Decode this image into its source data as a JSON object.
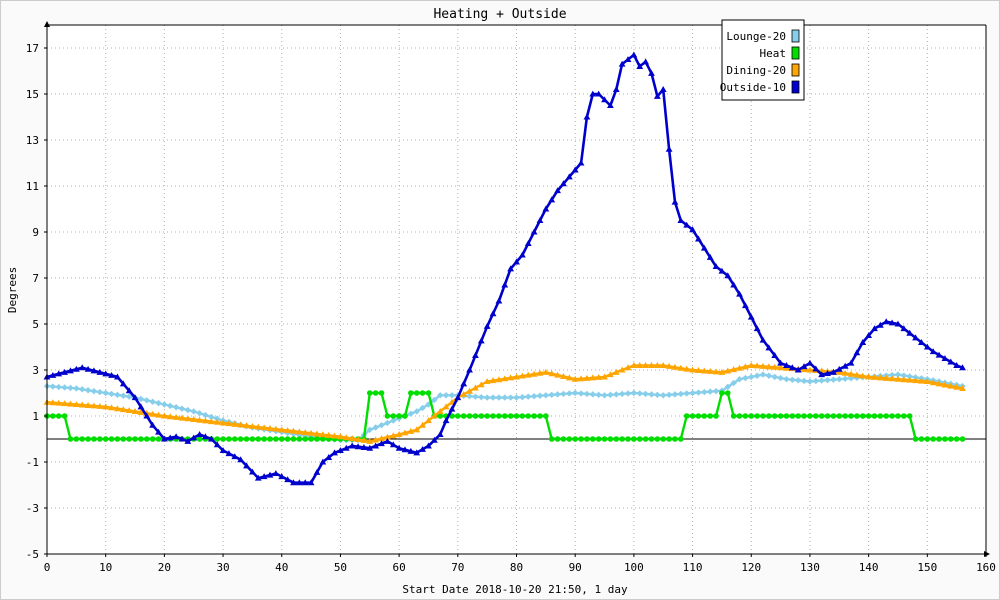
{
  "chart_data": {
    "type": "line",
    "title": "Heating + Outside",
    "xlabel": "Start Date 2018-10-20 21:50, 1 day",
    "ylabel": "Degrees",
    "xlim": [
      0,
      160
    ],
    "ylim": [
      -5,
      18
    ],
    "xticks": [
      0,
      10,
      20,
      30,
      40,
      50,
      60,
      70,
      80,
      90,
      100,
      110,
      120,
      130,
      140,
      150,
      160
    ],
    "yticks": [
      -5,
      -3,
      -1,
      1,
      3,
      5,
      7,
      9,
      11,
      13,
      15,
      17
    ],
    "grid": true,
    "legend_position": "top-right",
    "series": [
      {
        "name": "Lounge-20",
        "color": "#87CEEB",
        "marker": "diamond",
        "points": [
          [
            0,
            2.3
          ],
          [
            5,
            2.2
          ],
          [
            10,
            2.0
          ],
          [
            15,
            1.8
          ],
          [
            20,
            1.5
          ],
          [
            25,
            1.2
          ],
          [
            30,
            0.8
          ],
          [
            35,
            0.5
          ],
          [
            40,
            0.3
          ],
          [
            45,
            0.1
          ],
          [
            50,
            -0.05
          ],
          [
            53,
            -0.05
          ],
          [
            55,
            0.4
          ],
          [
            57,
            0.6
          ],
          [
            60,
            0.9
          ],
          [
            63,
            1.2
          ],
          [
            65,
            1.5
          ],
          [
            67,
            1.9
          ],
          [
            70,
            1.9
          ],
          [
            75,
            1.8
          ],
          [
            80,
            1.8
          ],
          [
            85,
            1.9
          ],
          [
            90,
            2.0
          ],
          [
            95,
            1.9
          ],
          [
            100,
            2.0
          ],
          [
            105,
            1.9
          ],
          [
            110,
            2.0
          ],
          [
            115,
            2.1
          ],
          [
            118,
            2.6
          ],
          [
            122,
            2.8
          ],
          [
            126,
            2.6
          ],
          [
            130,
            2.5
          ],
          [
            135,
            2.6
          ],
          [
            140,
            2.7
          ],
          [
            145,
            2.8
          ],
          [
            150,
            2.6
          ],
          [
            156,
            2.3
          ]
        ]
      },
      {
        "name": "Heat",
        "color": "#00DD00",
        "marker": "circle",
        "points": [
          [
            0,
            1
          ],
          [
            3,
            1
          ],
          [
            4,
            0
          ],
          [
            54,
            0
          ],
          [
            55,
            2
          ],
          [
            57,
            2
          ],
          [
            58,
            1
          ],
          [
            61,
            1
          ],
          [
            62,
            2
          ],
          [
            65,
            2
          ],
          [
            66,
            1
          ],
          [
            85,
            1
          ],
          [
            86,
            0
          ],
          [
            108,
            0
          ],
          [
            109,
            1
          ],
          [
            114,
            1
          ],
          [
            115,
            2
          ],
          [
            116,
            2
          ],
          [
            117,
            1
          ],
          [
            147,
            1
          ],
          [
            148,
            0
          ],
          [
            156,
            0
          ]
        ]
      },
      {
        "name": "Dining-20",
        "color": "#FFA500",
        "marker": "triangle",
        "points": [
          [
            0,
            1.6
          ],
          [
            10,
            1.4
          ],
          [
            20,
            1.0
          ],
          [
            30,
            0.7
          ],
          [
            40,
            0.4
          ],
          [
            50,
            0.1
          ],
          [
            55,
            -0.1
          ],
          [
            60,
            0.2
          ],
          [
            63,
            0.4
          ],
          [
            66,
            1.0
          ],
          [
            70,
            1.8
          ],
          [
            75,
            2.5
          ],
          [
            80,
            2.7
          ],
          [
            85,
            2.9
          ],
          [
            90,
            2.6
          ],
          [
            95,
            2.7
          ],
          [
            100,
            3.2
          ],
          [
            105,
            3.2
          ],
          [
            110,
            3.0
          ],
          [
            115,
            2.9
          ],
          [
            120,
            3.2
          ],
          [
            125,
            3.1
          ],
          [
            130,
            3.0
          ],
          [
            135,
            2.9
          ],
          [
            140,
            2.7
          ],
          [
            145,
            2.6
          ],
          [
            150,
            2.5
          ],
          [
            156,
            2.2
          ]
        ]
      },
      {
        "name": "Outside-10",
        "color": "#0000CC",
        "marker": "triangle",
        "points": [
          [
            0,
            2.7
          ],
          [
            3,
            2.9
          ],
          [
            6,
            3.1
          ],
          [
            9,
            2.9
          ],
          [
            12,
            2.7
          ],
          [
            15,
            1.8
          ],
          [
            18,
            0.6
          ],
          [
            20,
            0.0
          ],
          [
            22,
            0.1
          ],
          [
            24,
            -0.1
          ],
          [
            26,
            0.2
          ],
          [
            28,
            0.0
          ],
          [
            30,
            -0.5
          ],
          [
            33,
            -0.9
          ],
          [
            36,
            -1.7
          ],
          [
            39,
            -1.5
          ],
          [
            42,
            -1.9
          ],
          [
            45,
            -1.9
          ],
          [
            47,
            -1.0
          ],
          [
            49,
            -0.6
          ],
          [
            52,
            -0.3
          ],
          [
            55,
            -0.4
          ],
          [
            58,
            -0.1
          ],
          [
            60,
            -0.4
          ],
          [
            63,
            -0.6
          ],
          [
            65,
            -0.3
          ],
          [
            67,
            0.2
          ],
          [
            68,
            0.8
          ],
          [
            70,
            1.8
          ],
          [
            72,
            3.0
          ],
          [
            75,
            4.9
          ],
          [
            77,
            6.0
          ],
          [
            79,
            7.4
          ],
          [
            81,
            8.0
          ],
          [
            83,
            9.0
          ],
          [
            85,
            10.0
          ],
          [
            87,
            10.8
          ],
          [
            89,
            11.4
          ],
          [
            91,
            12.0
          ],
          [
            92,
            14.0
          ],
          [
            93,
            15.0
          ],
          [
            94,
            15.0
          ],
          [
            96,
            14.5
          ],
          [
            97,
            15.2
          ],
          [
            98,
            16.3
          ],
          [
            99,
            16.5
          ],
          [
            100,
            16.7
          ],
          [
            101,
            16.2
          ],
          [
            102,
            16.4
          ],
          [
            103,
            15.9
          ],
          [
            104,
            14.9
          ],
          [
            105,
            15.2
          ],
          [
            106,
            12.6
          ],
          [
            107,
            10.3
          ],
          [
            108,
            9.5
          ],
          [
            110,
            9.1
          ],
          [
            112,
            8.3
          ],
          [
            114,
            7.5
          ],
          [
            116,
            7.1
          ],
          [
            118,
            6.3
          ],
          [
            120,
            5.3
          ],
          [
            122,
            4.3
          ],
          [
            125,
            3.3
          ],
          [
            128,
            3.0
          ],
          [
            130,
            3.3
          ],
          [
            132,
            2.8
          ],
          [
            134,
            2.9
          ],
          [
            137,
            3.3
          ],
          [
            139,
            4.2
          ],
          [
            141,
            4.8
          ],
          [
            143,
            5.1
          ],
          [
            145,
            5.0
          ],
          [
            147,
            4.6
          ],
          [
            149,
            4.2
          ],
          [
            151,
            3.8
          ],
          [
            153,
            3.5
          ],
          [
            155,
            3.2
          ],
          [
            156,
            3.1
          ]
        ]
      }
    ]
  }
}
